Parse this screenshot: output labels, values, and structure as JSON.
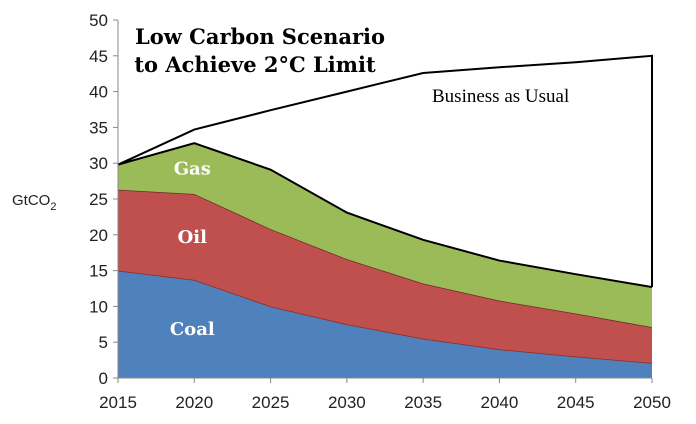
{
  "chart_data": {
    "type": "area",
    "title_lines": [
      "Low Carbon Scenario",
      "to Achieve 2°C Limit"
    ],
    "ylabel_main": "GtCO",
    "ylabel_sub": "2",
    "x": [
      2015,
      2020,
      2025,
      2030,
      2035,
      2040,
      2045,
      2050
    ],
    "ylim": [
      0,
      50
    ],
    "yticks": [
      0,
      5,
      10,
      15,
      20,
      25,
      30,
      35,
      40,
      45,
      50
    ],
    "stack_order": [
      "Coal",
      "Oil",
      "Gas"
    ],
    "series": [
      {
        "name": "Coal",
        "color": "#4f81bd",
        "edge": "#8b2a2a",
        "values": [
          15,
          13.7,
          10,
          7.5,
          5.5,
          4,
          3,
          2.1
        ]
      },
      {
        "name": "Oil",
        "color": "#c0504d",
        "edge": "#6e2a28",
        "values": [
          11.3,
          12,
          10.8,
          9.1,
          7.7,
          6.8,
          6,
          5
        ]
      },
      {
        "name": "Gas",
        "color": "#9bbb59",
        "edge": "#000000",
        "values": [
          3.5,
          7.1,
          8.3,
          6.5,
          6.1,
          5.6,
          5.5,
          5.6
        ]
      }
    ],
    "bau": {
      "name": "Business as Usual",
      "values": [
        29.8,
        34.7,
        37.4,
        40,
        42.6,
        43.4,
        44.1,
        45
      ]
    },
    "series_label_positions": {
      "Coal": 2020,
      "Oil": 2020,
      "Gas": 2020
    }
  }
}
